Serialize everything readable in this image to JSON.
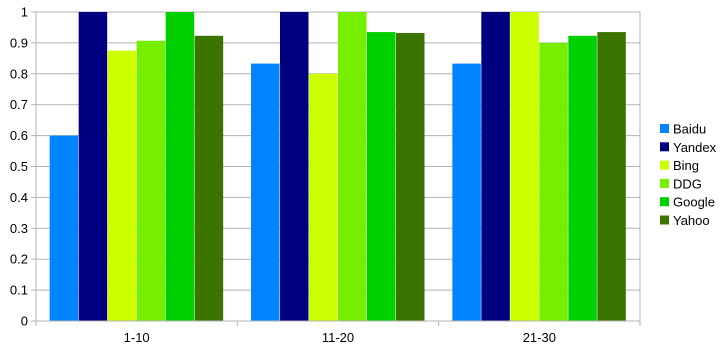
{
  "chart_data": {
    "type": "bar",
    "categories": [
      "1-10",
      "11-20",
      "21-30"
    ],
    "series": [
      {
        "name": "Baidu",
        "color": "#0084ff",
        "values": [
          0.6,
          0.833,
          0.833
        ]
      },
      {
        "name": "Yandex",
        "color": "#000080",
        "values": [
          1.0,
          1.0,
          1.0
        ]
      },
      {
        "name": "Bing",
        "color": "#ccff00",
        "values": [
          0.875,
          0.8,
          1.0
        ]
      },
      {
        "name": "DDG",
        "color": "#76ee00",
        "values": [
          0.907,
          1.0,
          0.9
        ]
      },
      {
        "name": "Google",
        "color": "#00d000",
        "values": [
          1.0,
          0.935,
          0.923
        ]
      },
      {
        "name": "Yahoo",
        "color": "#3c7400",
        "values": [
          0.923,
          0.932,
          0.935
        ]
      }
    ],
    "yticks": [
      "0",
      "0.1",
      "0.2",
      "0.3",
      "0.4",
      "0.5",
      "0.6",
      "0.7",
      "0.8",
      "0.9",
      "1"
    ],
    "ylim": [
      0,
      1
    ],
    "grid": true,
    "legend": "right"
  }
}
